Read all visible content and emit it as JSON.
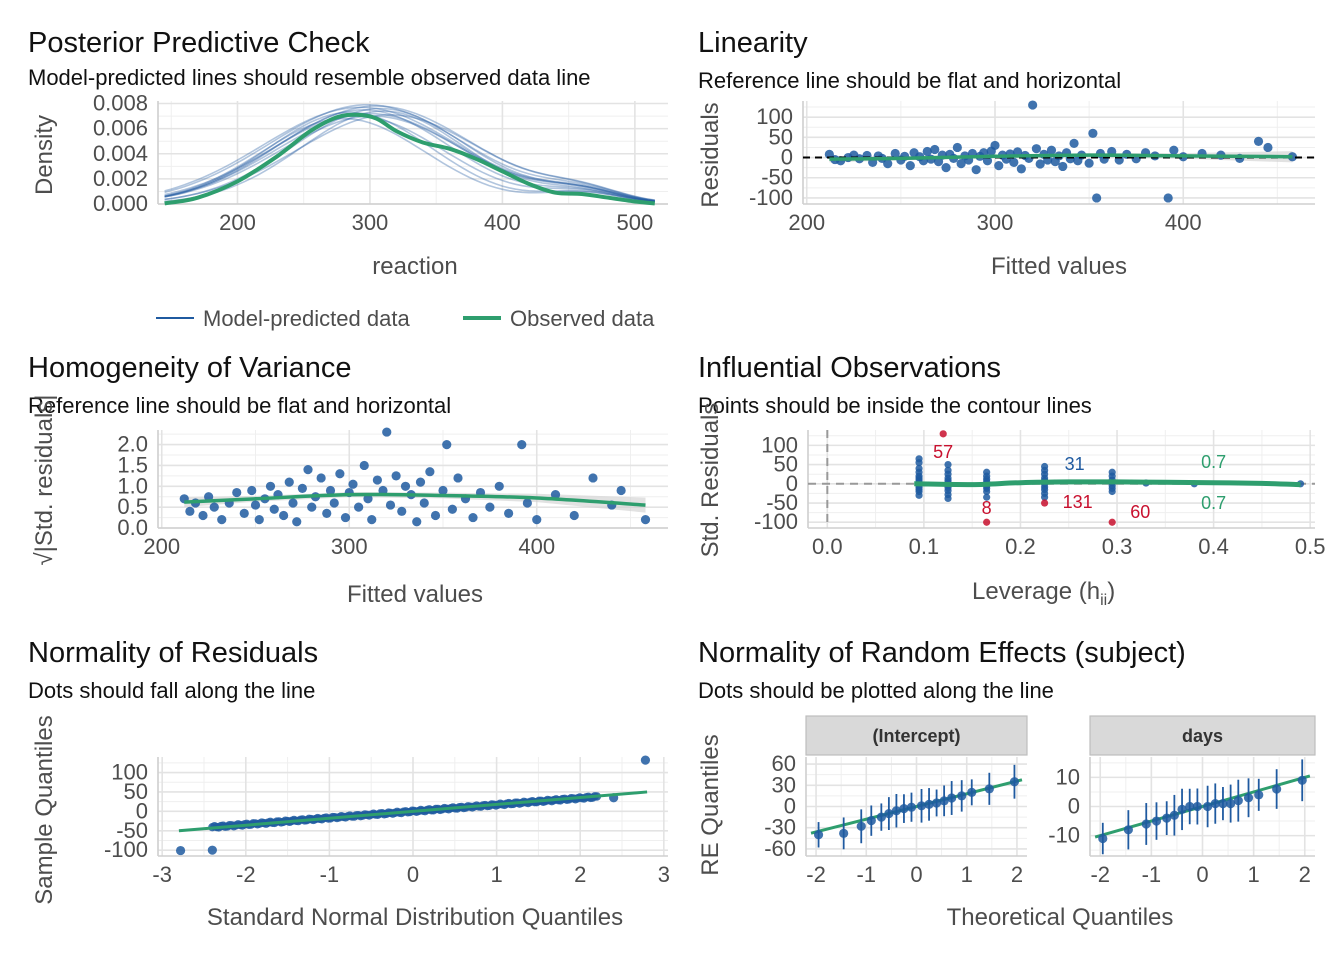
{
  "colors": {
    "blue": "#1f5aa0",
    "green": "#2e9e6e",
    "red": "#c8102e",
    "ref_line": "#000000",
    "band": "#cfcfcf"
  },
  "chart_data": [
    {
      "id": "ppc",
      "type": "line",
      "title": "Posterior Predictive Check",
      "subtitle": "Model-predicted lines should resemble observed data line",
      "xlabel": "reaction",
      "ylabel": "Density",
      "xlim": [
        140,
        525
      ],
      "ylim": [
        0,
        0.0082
      ],
      "x_ticks": [
        200,
        300,
        400,
        500
      ],
      "y_ticks": [
        0.0,
        0.002,
        0.004,
        0.006,
        0.008
      ],
      "y_tick_labels": [
        "0.000",
        "0.002",
        "0.004",
        "0.006",
        "0.008"
      ],
      "legend": [
        "Model-predicted data",
        "Observed data"
      ],
      "observed": {
        "x": [
          145,
          170,
          200,
          230,
          255,
          275,
          290,
          305,
          320,
          340,
          360,
          380,
          400,
          420,
          440,
          460,
          480,
          500,
          515
        ],
        "y": [
          5e-05,
          0.0005,
          0.0018,
          0.0038,
          0.0058,
          0.0069,
          0.0071,
          0.0068,
          0.0058,
          0.0049,
          0.0044,
          0.0036,
          0.0026,
          0.0016,
          0.0009,
          0.0008,
          0.0005,
          0.0002,
          5e-05
        ]
      },
      "model_predicted_peaks": [
        [
          285,
          0.0073
        ],
        [
          295,
          0.0075
        ],
        [
          300,
          0.0072
        ],
        [
          305,
          0.0078
        ],
        [
          310,
          0.0074
        ],
        [
          290,
          0.007
        ],
        [
          315,
          0.0071
        ],
        [
          298,
          0.0079
        ],
        [
          280,
          0.0068
        ],
        [
          308,
          0.0076
        ],
        [
          302,
          0.007
        ],
        [
          293,
          0.0077
        ]
      ]
    },
    {
      "id": "linearity",
      "type": "scatter",
      "title": "Linearity",
      "subtitle": "Reference line should be flat and horizontal",
      "xlabel": "Fitted values",
      "ylabel": "Residuals",
      "xlim": [
        198,
        470
      ],
      "ylim": [
        -115,
        140
      ],
      "x_ticks": [
        200,
        300,
        400
      ],
      "y_ticks": [
        -100,
        -50,
        0,
        50,
        100
      ],
      "points": [
        [
          212,
          8
        ],
        [
          215,
          -5
        ],
        [
          218,
          -8
        ],
        [
          222,
          0
        ],
        [
          225,
          6
        ],
        [
          228,
          -3
        ],
        [
          232,
          5
        ],
        [
          235,
          -12
        ],
        [
          238,
          4
        ],
        [
          240,
          -2
        ],
        [
          243,
          -15
        ],
        [
          247,
          10
        ],
        [
          250,
          -6
        ],
        [
          252,
          3
        ],
        [
          255,
          -20
        ],
        [
          257,
          12
        ],
        [
          260,
          2
        ],
        [
          262,
          -8
        ],
        [
          264,
          15
        ],
        [
          266,
          -4
        ],
        [
          268,
          20
        ],
        [
          270,
          -10
        ],
        [
          272,
          6
        ],
        [
          274,
          -25
        ],
        [
          276,
          8
        ],
        [
          278,
          -2
        ],
        [
          280,
          25
        ],
        [
          282,
          -15
        ],
        [
          284,
          4
        ],
        [
          286,
          -6
        ],
        [
          288,
          10
        ],
        [
          290,
          -30
        ],
        [
          292,
          3
        ],
        [
          294,
          12
        ],
        [
          296,
          -8
        ],
        [
          298,
          16
        ],
        [
          300,
          30
        ],
        [
          302,
          -20
        ],
        [
          304,
          6
        ],
        [
          306,
          -4
        ],
        [
          308,
          9
        ],
        [
          310,
          -12
        ],
        [
          312,
          14
        ],
        [
          314,
          -28
        ],
        [
          316,
          5
        ],
        [
          318,
          -2
        ],
        [
          320,
          130
        ],
        [
          322,
          22
        ],
        [
          324,
          -16
        ],
        [
          326,
          8
        ],
        [
          328,
          -6
        ],
        [
          330,
          18
        ],
        [
          332,
          -10
        ],
        [
          334,
          4
        ],
        [
          336,
          -22
        ],
        [
          338,
          12
        ],
        [
          340,
          -3
        ],
        [
          342,
          35
        ],
        [
          344,
          -8
        ],
        [
          346,
          6
        ],
        [
          350,
          -14
        ],
        [
          352,
          60
        ],
        [
          354,
          -100
        ],
        [
          356,
          10
        ],
        [
          358,
          -4
        ],
        [
          362,
          15
        ],
        [
          366,
          -6
        ],
        [
          370,
          8
        ],
        [
          375,
          -3
        ],
        [
          380,
          12
        ],
        [
          385,
          4
        ],
        [
          392,
          -100
        ],
        [
          395,
          18
        ],
        [
          400,
          2
        ],
        [
          410,
          10
        ],
        [
          420,
          6
        ],
        [
          430,
          -2
        ],
        [
          440,
          40
        ],
        [
          445,
          25
        ],
        [
          458,
          2
        ]
      ],
      "smooth": {
        "x": [
          212,
          250,
          300,
          350,
          400,
          458
        ],
        "y": [
          -4,
          -2,
          3,
          6,
          4,
          2
        ]
      },
      "band_halfwidth": [
        8,
        5,
        4,
        5,
        7,
        14
      ],
      "reference_y": 0
    },
    {
      "id": "homogeneity",
      "type": "scatter",
      "title": "Homogeneity of Variance",
      "subtitle": "Reference line should be flat and horizontal",
      "xlabel": "Fitted values",
      "ylabel": "√|Std. residuals|",
      "xlim": [
        198,
        470
      ],
      "ylim": [
        0,
        2.35
      ],
      "x_ticks": [
        200,
        300,
        400
      ],
      "y_ticks": [
        0.0,
        0.5,
        1.0,
        1.5,
        2.0
      ],
      "y_tick_labels": [
        "0.0",
        "0.5",
        "1.0",
        "1.5",
        "2.0"
      ],
      "points": [
        [
          212,
          0.7
        ],
        [
          215,
          0.4
        ],
        [
          218,
          0.6
        ],
        [
          222,
          0.3
        ],
        [
          225,
          0.75
        ],
        [
          228,
          0.5
        ],
        [
          232,
          0.2
        ],
        [
          236,
          0.6
        ],
        [
          240,
          0.85
        ],
        [
          244,
          0.35
        ],
        [
          248,
          0.9
        ],
        [
          250,
          0.55
        ],
        [
          252,
          0.2
        ],
        [
          255,
          0.7
        ],
        [
          258,
          1.0
        ],
        [
          260,
          0.45
        ],
        [
          262,
          0.8
        ],
        [
          265,
          0.3
        ],
        [
          268,
          1.1
        ],
        [
          270,
          0.6
        ],
        [
          272,
          0.15
        ],
        [
          275,
          0.95
        ],
        [
          278,
          1.4
        ],
        [
          280,
          0.5
        ],
        [
          282,
          0.75
        ],
        [
          285,
          1.2
        ],
        [
          288,
          0.35
        ],
        [
          290,
          0.9
        ],
        [
          292,
          0.6
        ],
        [
          295,
          1.3
        ],
        [
          298,
          0.25
        ],
        [
          300,
          0.85
        ],
        [
          302,
          1.05
        ],
        [
          305,
          0.5
        ],
        [
          308,
          1.5
        ],
        [
          310,
          0.7
        ],
        [
          312,
          0.2
        ],
        [
          315,
          1.15
        ],
        [
          318,
          0.9
        ],
        [
          320,
          2.3
        ],
        [
          322,
          0.55
        ],
        [
          325,
          1.25
        ],
        [
          328,
          0.4
        ],
        [
          330,
          1.0
        ],
        [
          333,
          0.8
        ],
        [
          336,
          0.15
        ],
        [
          338,
          1.1
        ],
        [
          340,
          0.6
        ],
        [
          343,
          1.35
        ],
        [
          346,
          0.3
        ],
        [
          350,
          0.9
        ],
        [
          352,
          2.0
        ],
        [
          355,
          0.45
        ],
        [
          358,
          1.2
        ],
        [
          362,
          0.7
        ],
        [
          366,
          0.25
        ],
        [
          370,
          0.85
        ],
        [
          375,
          0.5
        ],
        [
          380,
          1.0
        ],
        [
          385,
          0.35
        ],
        [
          392,
          2.0
        ],
        [
          395,
          0.6
        ],
        [
          400,
          0.2
        ],
        [
          410,
          0.8
        ],
        [
          420,
          0.3
        ],
        [
          430,
          1.2
        ],
        [
          440,
          0.55
        ],
        [
          445,
          0.9
        ],
        [
          458,
          0.2
        ]
      ],
      "smooth": {
        "x": [
          212,
          250,
          300,
          350,
          400,
          458
        ],
        "y": [
          0.62,
          0.7,
          0.8,
          0.78,
          0.72,
          0.55
        ]
      },
      "band_halfwidth": [
        0.12,
        0.07,
        0.06,
        0.07,
        0.1,
        0.18
      ]
    },
    {
      "id": "influential",
      "type": "scatter",
      "title": "Influential Observations",
      "subtitle": "Points should be inside the contour lines",
      "xlabel": "Leverage (h",
      "xlabel_sub": "ii",
      "xlabel_suffix": ")",
      "ylabel": "Std. Residuals",
      "xlim": [
        -0.02,
        0.505
      ],
      "ylim": [
        -115,
        140
      ],
      "x_ticks": [
        0.0,
        0.1,
        0.2,
        0.3,
        0.4,
        0.5
      ],
      "x_tick_labels": [
        "0.0",
        "0.1",
        "0.2",
        "0.3",
        "0.4",
        "0.5"
      ],
      "y_ticks": [
        -100,
        -50,
        0,
        50,
        100
      ],
      "leverage_columns": [
        0.095,
        0.125,
        0.165,
        0.225,
        0.295
      ],
      "column_residuals": [
        [
          65,
          55,
          40,
          30,
          20,
          15,
          10,
          5,
          0,
          -5,
          -10,
          -15,
          -20,
          -30
        ],
        [
          50,
          35,
          25,
          15,
          8,
          2,
          -4,
          -10,
          -18,
          -28,
          -38
        ],
        [
          30,
          20,
          12,
          6,
          0,
          -6,
          -12,
          -20,
          -35
        ],
        [
          45,
          35,
          25,
          15,
          8,
          0,
          -8,
          -15,
          -25,
          -35
        ],
        [
          30,
          20,
          10,
          3,
          -5,
          -12,
          -20
        ]
      ],
      "extra_points": [
        [
          0.33,
          2
        ],
        [
          0.38,
          0
        ],
        [
          0.49,
          0
        ]
      ],
      "flagged": [
        {
          "id": "57",
          "x": 0.12,
          "y": 130
        },
        {
          "id": "8",
          "x": 0.165,
          "y": -100
        },
        {
          "id": "131",
          "x": 0.225,
          "y": -50
        },
        {
          "id": "60",
          "x": 0.295,
          "y": -100
        }
      ],
      "id_31": {
        "label": "31",
        "x": 0.225
      },
      "contour_label": "0.7",
      "smooth": {
        "x": [
          0.09,
          0.15,
          0.2,
          0.25,
          0.3,
          0.35,
          0.4,
          0.45,
          0.49
        ],
        "y": [
          0,
          -2,
          3,
          5,
          5,
          4,
          3,
          1,
          -2
        ]
      }
    },
    {
      "id": "normality_residuals",
      "type": "scatter",
      "title": "Normality of Residuals",
      "subtitle": "Dots should fall along the line",
      "xlabel": "Standard Normal Distribution Quantiles",
      "ylabel": "Sample Quantiles",
      "xlim": [
        -3.05,
        3.05
      ],
      "ylim": [
        -115,
        140
      ],
      "x_ticks": [
        -3,
        -2,
        -1,
        0,
        1,
        2,
        3
      ],
      "y_ticks": [
        -100,
        -50,
        0,
        50,
        100
      ],
      "reference_line": {
        "x": [
          -2.8,
          2.8
        ],
        "y": [
          -50,
          50
        ]
      },
      "n_points": 180,
      "outliers": [
        [
          -2.78,
          -101
        ],
        [
          -2.4,
          -100
        ],
        [
          2.4,
          35
        ],
        [
          2.78,
          132
        ]
      ]
    },
    {
      "id": "random_effects",
      "type": "scatter",
      "title": "Normality of Random Effects (subject)",
      "subtitle": "Dots should be plotted along the line",
      "xlabel": "Theoretical Quantiles",
      "ylabel": "RE Quantiles",
      "panels": [
        {
          "name": "(Intercept)",
          "xlim": [
            -2.2,
            2.2
          ],
          "ylim": [
            -70,
            70
          ],
          "x_ticks": [
            -2,
            -1,
            0,
            1,
            2
          ],
          "y_ticks": [
            -60,
            -30,
            0,
            30,
            60
          ],
          "slope": 18,
          "ci": 20,
          "points": [
            [
              -1.95,
              -40
            ],
            [
              -1.45,
              -38
            ],
            [
              -1.1,
              -28
            ],
            [
              -0.9,
              -20
            ],
            [
              -0.7,
              -15
            ],
            [
              -0.55,
              -10
            ],
            [
              -0.4,
              -6
            ],
            [
              -0.25,
              -3
            ],
            [
              -0.1,
              -1
            ],
            [
              0.1,
              1
            ],
            [
              0.25,
              3
            ],
            [
              0.4,
              5
            ],
            [
              0.55,
              8
            ],
            [
              0.7,
              12
            ],
            [
              0.9,
              15
            ],
            [
              1.1,
              20
            ],
            [
              1.45,
              25
            ],
            [
              1.95,
              35
            ]
          ]
        },
        {
          "name": "days",
          "xlim": [
            -2.2,
            2.2
          ],
          "ylim": [
            -17,
            17
          ],
          "x_ticks": [
            -2,
            -1,
            0,
            1,
            2
          ],
          "y_ticks": [
            -10,
            0,
            10
          ],
          "slope": 5,
          "ci": 6,
          "points": [
            [
              -1.95,
              -11
            ],
            [
              -1.45,
              -8
            ],
            [
              -1.1,
              -6
            ],
            [
              -0.9,
              -5
            ],
            [
              -0.7,
              -4
            ],
            [
              -0.55,
              -3
            ],
            [
              -0.4,
              -1
            ],
            [
              -0.25,
              0
            ],
            [
              -0.1,
              0
            ],
            [
              0.1,
              0
            ],
            [
              0.25,
              1
            ],
            [
              0.4,
              1
            ],
            [
              0.55,
              1
            ],
            [
              0.7,
              2
            ],
            [
              0.9,
              3
            ],
            [
              1.1,
              4
            ],
            [
              1.45,
              6
            ],
            [
              1.95,
              9
            ]
          ]
        }
      ]
    }
  ]
}
